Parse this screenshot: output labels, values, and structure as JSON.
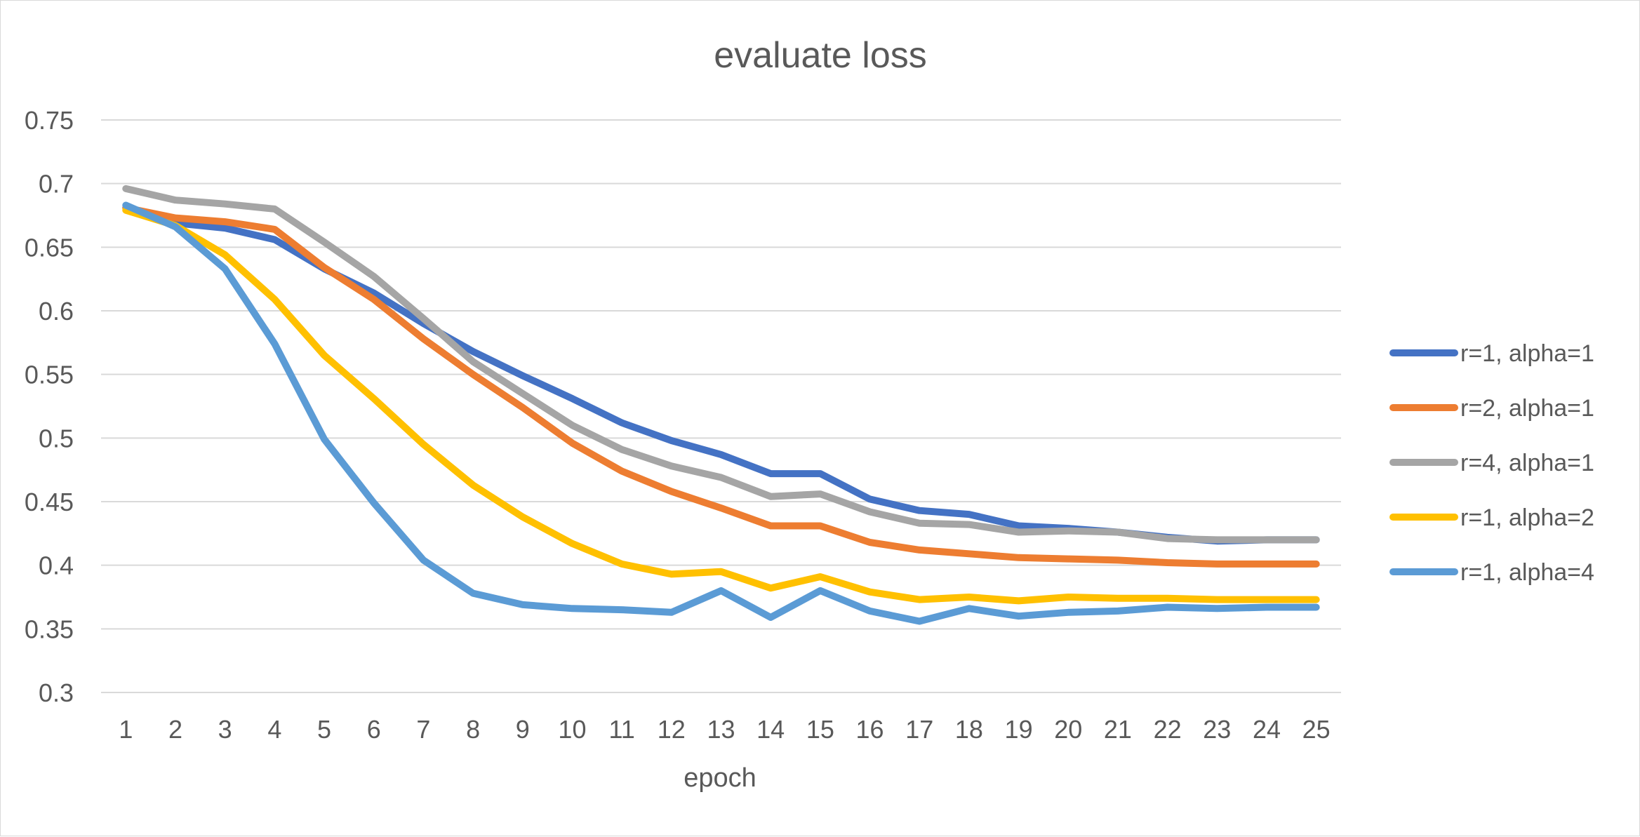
{
  "chart_data": {
    "type": "line",
    "title": "evaluate loss",
    "xlabel": "epoch",
    "ylabel": "",
    "x": [
      1,
      2,
      3,
      4,
      5,
      6,
      7,
      8,
      9,
      10,
      11,
      12,
      13,
      14,
      15,
      16,
      17,
      18,
      19,
      20,
      21,
      22,
      23,
      24,
      25
    ],
    "x_tick_labels": [
      "1",
      "2",
      "3",
      "4",
      "5",
      "6",
      "7",
      "8",
      "9",
      "10",
      "11",
      "12",
      "13",
      "14",
      "15",
      "16",
      "17",
      "18",
      "19",
      "20",
      "21",
      "22",
      "23",
      "24",
      "25"
    ],
    "ylim": [
      0.3,
      0.75
    ],
    "y_ticks": [
      0.3,
      0.35,
      0.4,
      0.45,
      0.5,
      0.55,
      0.6,
      0.65,
      0.7,
      0.75
    ],
    "y_tick_labels": [
      "0.3",
      "0.35",
      "0.4",
      "0.45",
      "0.5",
      "0.55",
      "0.6",
      "0.65",
      "0.7",
      "0.75"
    ],
    "grid": true,
    "legend_position": "right",
    "series": [
      {
        "name": "r=1, alpha=1",
        "color": "#4472c4",
        "values": [
          0.681,
          0.669,
          0.665,
          0.656,
          0.633,
          0.614,
          0.59,
          0.568,
          0.549,
          0.531,
          0.512,
          0.498,
          0.487,
          0.472,
          0.472,
          0.452,
          0.443,
          0.44,
          0.431,
          0.429,
          0.426,
          0.422,
          0.419,
          0.42,
          0.42
        ]
      },
      {
        "name": "r=2, alpha=1",
        "color": "#ed7d31",
        "values": [
          0.681,
          0.673,
          0.67,
          0.664,
          0.634,
          0.609,
          0.578,
          0.55,
          0.524,
          0.496,
          0.474,
          0.458,
          0.445,
          0.431,
          0.431,
          0.418,
          0.412,
          0.409,
          0.406,
          0.405,
          0.404,
          0.402,
          0.401,
          0.401,
          0.401
        ]
      },
      {
        "name": "r=4, alpha=1",
        "color": "#a5a5a5",
        "values": [
          0.696,
          0.687,
          0.684,
          0.68,
          0.654,
          0.627,
          0.594,
          0.56,
          0.535,
          0.51,
          0.491,
          0.478,
          0.469,
          0.454,
          0.456,
          0.442,
          0.433,
          0.432,
          0.426,
          0.427,
          0.426,
          0.421,
          0.42,
          0.42,
          0.42
        ]
      },
      {
        "name": "r=1, alpha=2",
        "color": "#ffc000",
        "values": [
          0.679,
          0.667,
          0.644,
          0.609,
          0.565,
          0.531,
          0.495,
          0.463,
          0.438,
          0.417,
          0.401,
          0.393,
          0.395,
          0.382,
          0.391,
          0.379,
          0.373,
          0.375,
          0.372,
          0.375,
          0.374,
          0.374,
          0.373,
          0.373,
          0.373
        ]
      },
      {
        "name": "r=1, alpha=4",
        "color": "#5b9bd5",
        "values": [
          0.683,
          0.666,
          0.633,
          0.574,
          0.499,
          0.449,
          0.404,
          0.378,
          0.369,
          0.366,
          0.365,
          0.363,
          0.38,
          0.359,
          0.38,
          0.364,
          0.356,
          0.366,
          0.36,
          0.363,
          0.364,
          0.367,
          0.366,
          0.367,
          0.367
        ]
      }
    ]
  }
}
